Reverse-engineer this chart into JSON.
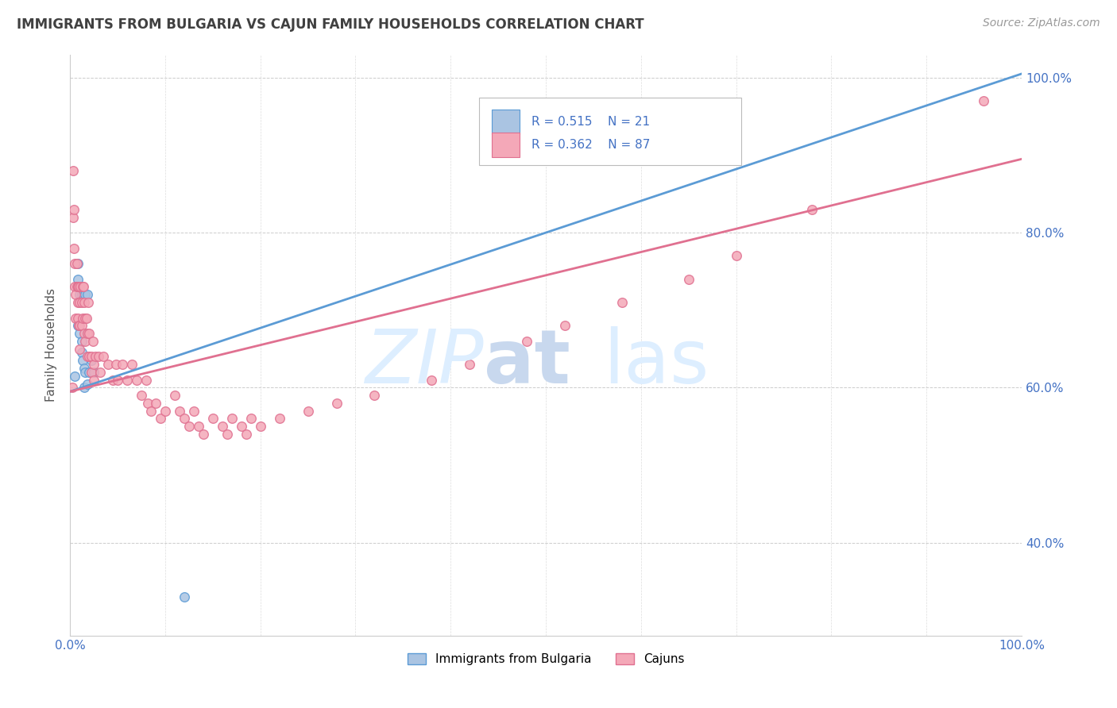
{
  "title": "IMMIGRANTS FROM BULGARIA VS CAJUN FAMILY HOUSEHOLDS CORRELATION CHART",
  "source": "Source: ZipAtlas.com",
  "ylabel": "Family Households",
  "r1": 0.515,
  "n1": 21,
  "r2": 0.362,
  "n2": 87,
  "color_bulgaria": "#aac4e2",
  "color_cajun": "#f4a8b8",
  "color_bulgaria_line": "#5b9bd5",
  "color_cajun_line": "#e07090",
  "color_axis_labels": "#4472c4",
  "color_title": "#404040",
  "legend_label1": "Immigrants from Bulgaria",
  "legend_label2": "Cajuns",
  "xmin": 0.0,
  "xmax": 1.0,
  "ymin": 0.28,
  "ymax": 1.03,
  "blue_line_x": [
    0.0,
    1.0
  ],
  "blue_line_y": [
    0.595,
    1.005
  ],
  "pink_line_x": [
    0.0,
    1.0
  ],
  "pink_line_y": [
    0.595,
    0.895
  ],
  "bulgaria_x": [
    0.005,
    0.008,
    0.008,
    0.01,
    0.012,
    0.012,
    0.013,
    0.015,
    0.015,
    0.016,
    0.018,
    0.02,
    0.022,
    0.025,
    0.008,
    0.01,
    0.012,
    0.014,
    0.016,
    0.018,
    0.12
  ],
  "bulgaria_y": [
    0.615,
    0.74,
    0.68,
    0.67,
    0.66,
    0.645,
    0.635,
    0.625,
    0.6,
    0.62,
    0.605,
    0.62,
    0.635,
    0.62,
    0.76,
    0.72,
    0.72,
    0.72,
    0.72,
    0.72,
    0.33
  ],
  "cajun_x": [
    0.002,
    0.003,
    0.003,
    0.004,
    0.004,
    0.005,
    0.005,
    0.006,
    0.006,
    0.007,
    0.007,
    0.008,
    0.008,
    0.008,
    0.009,
    0.009,
    0.01,
    0.01,
    0.01,
    0.011,
    0.012,
    0.012,
    0.013,
    0.013,
    0.014,
    0.015,
    0.015,
    0.016,
    0.016,
    0.017,
    0.018,
    0.018,
    0.019,
    0.02,
    0.02,
    0.022,
    0.022,
    0.024,
    0.025,
    0.025,
    0.027,
    0.03,
    0.032,
    0.035,
    0.04,
    0.045,
    0.048,
    0.05,
    0.055,
    0.06,
    0.065,
    0.07,
    0.075,
    0.08,
    0.082,
    0.085,
    0.09,
    0.095,
    0.1,
    0.11,
    0.115,
    0.12,
    0.125,
    0.13,
    0.135,
    0.14,
    0.15,
    0.16,
    0.165,
    0.17,
    0.18,
    0.185,
    0.19,
    0.2,
    0.22,
    0.25,
    0.28,
    0.32,
    0.38,
    0.42,
    0.48,
    0.52,
    0.58,
    0.65,
    0.7,
    0.78,
    0.96
  ],
  "cajun_y": [
    0.6,
    0.88,
    0.82,
    0.83,
    0.78,
    0.76,
    0.73,
    0.72,
    0.69,
    0.76,
    0.73,
    0.73,
    0.71,
    0.69,
    0.73,
    0.68,
    0.71,
    0.68,
    0.65,
    0.73,
    0.71,
    0.68,
    0.73,
    0.69,
    0.73,
    0.71,
    0.67,
    0.69,
    0.66,
    0.69,
    0.67,
    0.64,
    0.71,
    0.67,
    0.64,
    0.64,
    0.62,
    0.66,
    0.63,
    0.61,
    0.64,
    0.64,
    0.62,
    0.64,
    0.63,
    0.61,
    0.63,
    0.61,
    0.63,
    0.61,
    0.63,
    0.61,
    0.59,
    0.61,
    0.58,
    0.57,
    0.58,
    0.56,
    0.57,
    0.59,
    0.57,
    0.56,
    0.55,
    0.57,
    0.55,
    0.54,
    0.56,
    0.55,
    0.54,
    0.56,
    0.55,
    0.54,
    0.56,
    0.55,
    0.56,
    0.57,
    0.58,
    0.59,
    0.61,
    0.63,
    0.66,
    0.68,
    0.71,
    0.74,
    0.77,
    0.83,
    0.97
  ]
}
